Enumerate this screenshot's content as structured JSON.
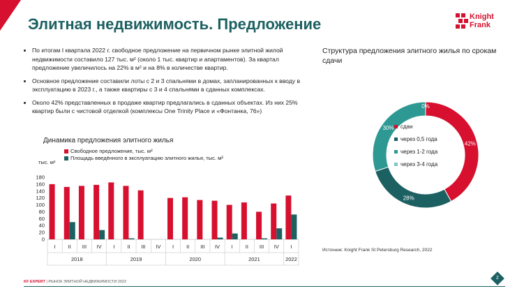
{
  "header": {
    "title": "Элитная недвижимость. Предложение",
    "logo_line1": "Knight",
    "logo_line2": "Frank"
  },
  "bullets": [
    "По итогам I квартала 2022 г. свободное предложение на первичном рынке элитной жилой недвижимости составило 127 тыс. м² (около 1 тыс. квартир и апартаментов). За квартал предложение увеличилось на 22% в м² и на 8% в количестве квартир.",
    "Основное предложение составили лоты с 2 и 3 спальнями в домах, запланированных к вводу в эксплуатацию в 2023 г., а также квартиры с 3 и 4 спальнями в сданных комплексах.",
    "Около 42% представленных в продаже квартир предлагались в сданных объектах. Из них 25% квартир были с чистовой отделкой (комплексы One Trinity Place и «Фонтанка, 76»)"
  ],
  "colors": {
    "red": "#d6102e",
    "teal": "#1d6062",
    "teal_mid": "#2e9993",
    "teal_light": "#7fc7c4"
  },
  "chart_data": [
    {
      "type": "bar",
      "title": "Динамика предложения элитного жилья",
      "ylabel": "тыс. м²",
      "ylim": [
        0,
        180
      ],
      "yticks": [
        0,
        20,
        40,
        60,
        80,
        100,
        120,
        140,
        160,
        180
      ],
      "categories": [
        "I",
        "II",
        "III",
        "IV",
        "I",
        "II",
        "III",
        "IV",
        "I",
        "II",
        "III",
        "IV",
        "I",
        "II",
        "III",
        "IV",
        "I"
      ],
      "years": [
        {
          "label": "2018",
          "span": 4
        },
        {
          "label": "2019",
          "span": 4
        },
        {
          "label": "2020",
          "span": 4
        },
        {
          "label": "2021",
          "span": 4
        },
        {
          "label": "2022",
          "span": 1
        }
      ],
      "series": [
        {
          "name": "Свободное предложение, тыс. м²",
          "color": "#d6102e",
          "values": [
            160,
            152,
            155,
            158,
            165,
            155,
            142,
            0,
            120,
            122,
            114,
            112,
            100,
            107,
            80,
            104,
            127
          ]
        },
        {
          "name": "Площадь введённого в эксплуатацию элитного жилья,  тыс. м²",
          "color": "#1d6062",
          "values": [
            0,
            50,
            0,
            27,
            0,
            3,
            0,
            0,
            0,
            0,
            0,
            5,
            17,
            0,
            3,
            32,
            72
          ]
        }
      ]
    },
    {
      "type": "pie",
      "title": "Структура предложения элитного жилья по срокам сдачи",
      "labels": [
        "сдан",
        "через 0,5 года",
        "через 1-2 года",
        "через 3-4 года"
      ],
      "values": [
        42,
        28,
        30,
        0
      ],
      "value_labels": [
        "42%",
        "28%",
        "30%",
        "0%"
      ],
      "colors": [
        "#d6102e",
        "#1d6062",
        "#2e9993",
        "#7fc7c4"
      ]
    }
  ],
  "source": "Источник: Knight Frank St Petersburg Research, 2022",
  "footer": {
    "brand": "KF EXPERT",
    "text": " | РЫНОК ЭЛИТНОЙ НЕДВИЖИМОСТИ 2022"
  },
  "page_number": "2"
}
